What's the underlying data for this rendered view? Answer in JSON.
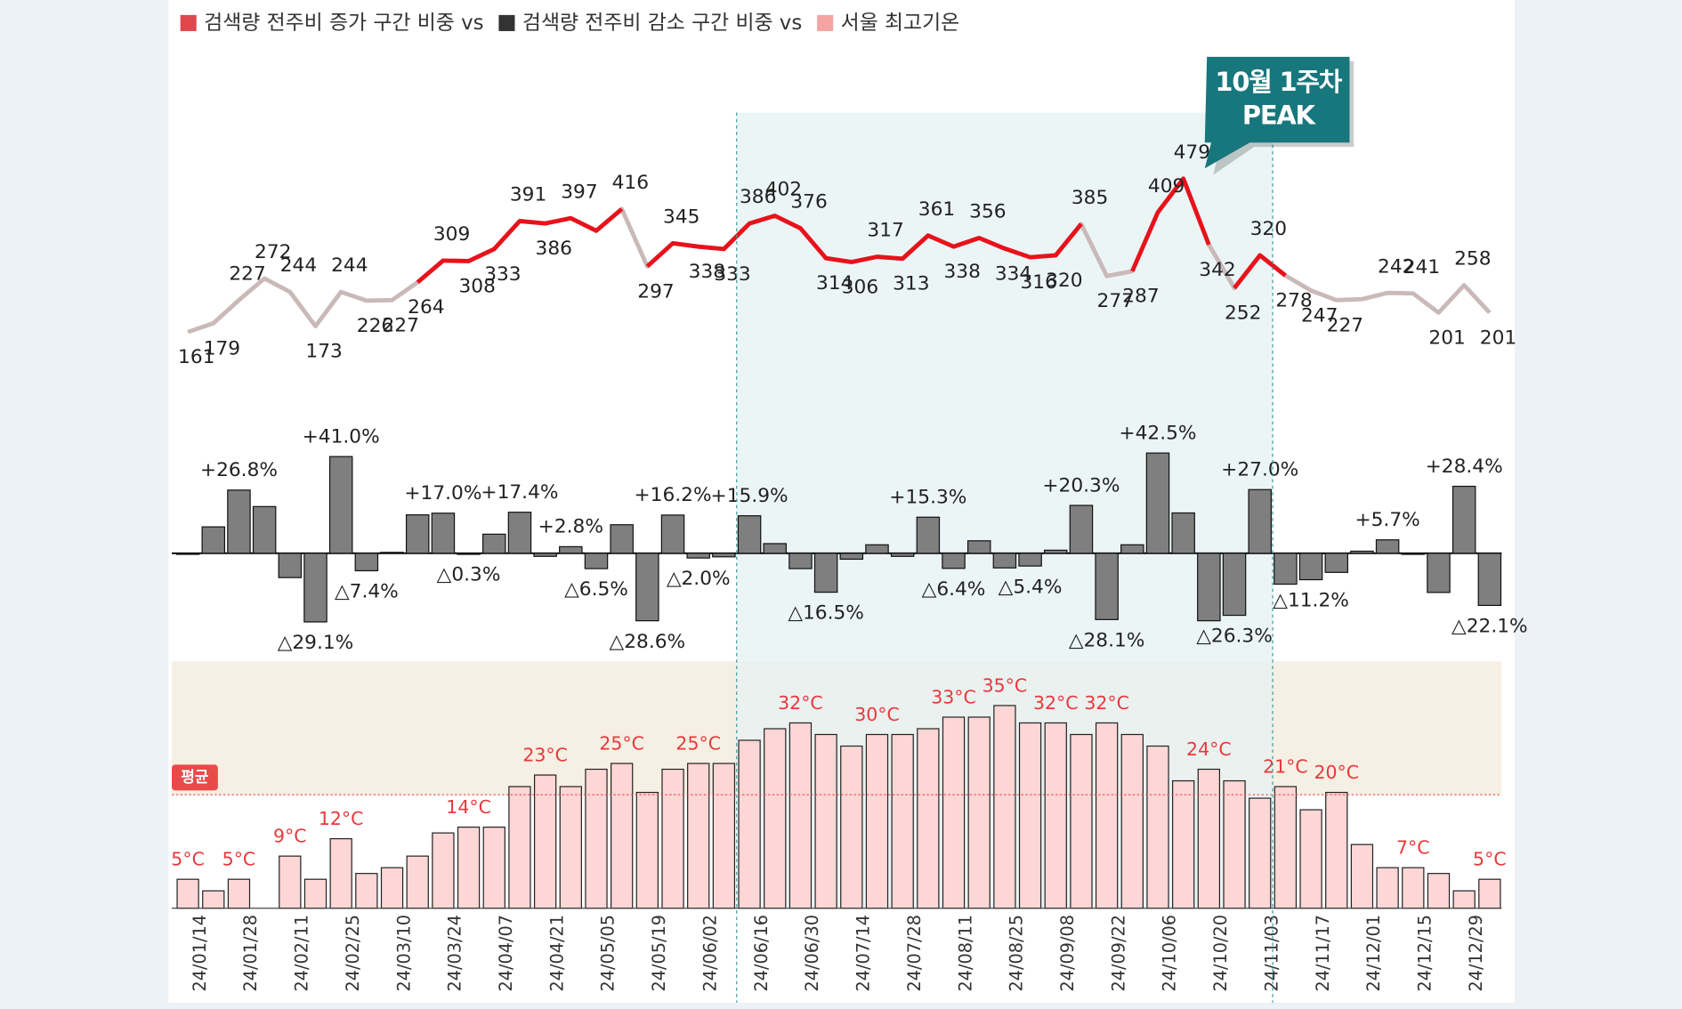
{
  "legend": [
    {
      "label": "검색량 전주비 증가 구간 비중 vs",
      "color": "#e0474c"
    },
    {
      "label": "검색량 전주비 감소 구간 비중 vs",
      "color": "#333333"
    },
    {
      "label": "서울 최고기온",
      "color": "#f5a3a3"
    }
  ],
  "annotation": {
    "lines": [
      "10월 1주차",
      "PEAK"
    ],
    "index": 39,
    "color": "#17777d"
  },
  "highlight": {
    "from": 22,
    "to": 42,
    "color": "#e6f1f3",
    "line_color": "#3a9aa0"
  },
  "chart_data": [
    {
      "type": "line",
      "values": [
        161,
        179,
        227,
        272,
        244,
        173,
        244,
        226,
        227,
        264,
        309,
        308,
        333,
        391,
        386,
        397,
        371,
        416,
        297,
        345,
        338,
        333,
        386,
        402,
        376,
        314,
        306,
        317,
        313,
        361,
        338,
        356,
        334,
        316,
        320,
        385,
        277,
        287,
        409,
        479,
        342,
        252,
        320,
        278,
        247,
        227,
        229,
        242,
        241,
        201,
        258,
        201
      ],
      "value_labels": [
        "161",
        "179",
        "227",
        "272",
        "244",
        "173",
        "244",
        "226",
        "227",
        "264",
        "309",
        "308",
        "333",
        "391",
        "386",
        "397",
        null,
        "416",
        "297",
        "345",
        "338",
        "333",
        "386",
        "402",
        "376",
        "314",
        "306",
        "317",
        "313",
        "361",
        "338",
        "356",
        "334",
        "316",
        "320",
        "385",
        "277",
        "287",
        "409",
        "479",
        "342",
        "252",
        "320",
        "278",
        "247",
        "227",
        null,
        "242",
        "241",
        "201",
        "258",
        "201"
      ],
      "color": "#c9b9b9",
      "rise_color": "#e8121b",
      "rise_segments": [
        [
          9,
          17
        ],
        [
          18,
          35
        ],
        [
          37,
          40
        ],
        [
          41,
          43
        ]
      ]
    },
    {
      "type": "bar",
      "values": [
        0,
        11.2,
        26.8,
        19.8,
        -10.3,
        -29.1,
        41.0,
        -7.4,
        0.4,
        16.3,
        17.0,
        -0.3,
        8.1,
        17.4,
        -1.3,
        2.8,
        -6.5,
        12.1,
        -28.6,
        16.2,
        -2.0,
        -1.5,
        15.9,
        4.1,
        -6.5,
        -16.5,
        -2.5,
        3.6,
        -1.3,
        15.3,
        -6.4,
        5.3,
        -6.2,
        -5.4,
        1.3,
        20.3,
        -28.1,
        3.6,
        42.5,
        17.1,
        -28.6,
        -26.3,
        27.0,
        -13.1,
        -11.2,
        -8.1,
        0.9,
        5.7,
        -0.4,
        -16.6,
        28.4,
        -22.1
      ],
      "value_labels": [
        null,
        null,
        "+26.8%",
        null,
        null,
        "△29.1%",
        "+41.0%",
        "△7.4%",
        null,
        null,
        "+17.0%",
        "△0.3%",
        null,
        "+17.4%",
        null,
        "+2.8%",
        "△6.5%",
        null,
        "△28.6%",
        "+16.2%",
        "△2.0%",
        null,
        "+15.9%",
        null,
        null,
        "△16.5%",
        null,
        null,
        null,
        "+15.3%",
        "△6.4%",
        null,
        null,
        "△5.4%",
        null,
        "+20.3%",
        "△28.1%",
        null,
        "+42.5%",
        null,
        null,
        "△26.3%",
        "+27.0%",
        null,
        "△11.2%",
        null,
        null,
        "+5.7%",
        null,
        null,
        "+28.4%",
        "△22.1%"
      ],
      "color": "#7f7f7f"
    },
    {
      "type": "bar",
      "categories": [
        null,
        "24/01/14",
        null,
        "24/01/28",
        null,
        "24/02/11",
        null,
        "24/02/25",
        null,
        "24/03/10",
        null,
        "24/03/24",
        null,
        "24/04/07",
        null,
        "24/04/21",
        null,
        "24/05/05",
        null,
        "24/05/19",
        null,
        "24/06/02",
        null,
        "24/06/16",
        null,
        "24/06/30",
        null,
        "24/07/14",
        null,
        "24/07/28",
        null,
        "24/08/11",
        null,
        "24/08/25",
        null,
        "24/09/08",
        null,
        "24/09/22",
        null,
        "24/10/06",
        null,
        "24/10/20",
        null,
        "24/11/03",
        null,
        "24/11/17",
        null,
        "24/12/01",
        null,
        "24/12/15",
        null,
        "24/12/29"
      ],
      "values": [
        5,
        3,
        5,
        null,
        9,
        5,
        12,
        6,
        7,
        9,
        13,
        14,
        14,
        21,
        23,
        21,
        24,
        25,
        20,
        24,
        25,
        25,
        29,
        31,
        32,
        30,
        28,
        30,
        30,
        31,
        33,
        33,
        35,
        32,
        32,
        30,
        32,
        30,
        28,
        22,
        24,
        22,
        19,
        21,
        17,
        20,
        11,
        7,
        7,
        6,
        3,
        5
      ],
      "value_labels": [
        "5°C",
        null,
        "5°C",
        null,
        "9°C",
        null,
        "12°C",
        null,
        null,
        null,
        null,
        "14°C",
        null,
        null,
        "23°C",
        null,
        null,
        "25°C",
        null,
        null,
        "25°C",
        null,
        null,
        null,
        "32°C",
        null,
        null,
        "30°C",
        null,
        null,
        "33°C",
        null,
        "35°C",
        null,
        "32°C",
        null,
        "32°C",
        null,
        null,
        null,
        "24°C",
        null,
        null,
        "21°C",
        null,
        "20°C",
        null,
        null,
        "7°C",
        null,
        null,
        "5°C"
      ],
      "color": "#fdd6d6",
      "label_color": "#e8383d",
      "average": 19.6,
      "average_label": "평균",
      "average_color": "#e84a4a",
      "band_color": "#f6efe3"
    }
  ]
}
